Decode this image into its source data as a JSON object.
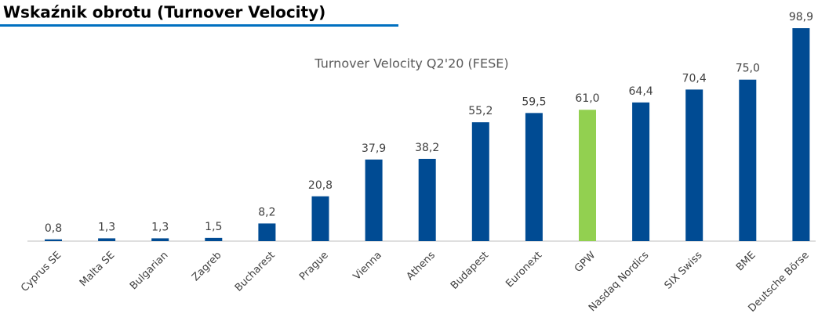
{
  "header": {
    "title": "Wskaźnik obrotu (Turnover Velocity)"
  },
  "chart_data": {
    "type": "bar",
    "title": "Turnover Velocity Q2'20 (FESE)",
    "categories": [
      "Cyprus SE",
      "Malta SE",
      "Bulgarian",
      "Zagreb",
      "Bucharest",
      "Prague",
      "Vienna",
      "Athens",
      "Budapest",
      "Euronext",
      "GPW",
      "Nasdaq Nordics",
      "SIX Swiss",
      "BME",
      "Deutsche Börse"
    ],
    "values": [
      0.8,
      1.3,
      1.3,
      1.5,
      8.2,
      20.8,
      37.9,
      38.2,
      55.2,
      59.5,
      61.0,
      64.4,
      70.4,
      75.0,
      98.9
    ],
    "value_labels": [
      "0,8",
      "1,3",
      "1,3",
      "1,5",
      "8,2",
      "20,8",
      "37,9",
      "38,2",
      "55,2",
      "59,5",
      "61,0",
      "64,4",
      "70,4",
      "75,0",
      "98,9"
    ],
    "colors": [
      "#004b93",
      "#004b93",
      "#004b93",
      "#004b93",
      "#004b93",
      "#004b93",
      "#004b93",
      "#004b93",
      "#004b93",
      "#004b93",
      "#92d050",
      "#004b93",
      "#004b93",
      "#004b93",
      "#004b93"
    ]
  }
}
